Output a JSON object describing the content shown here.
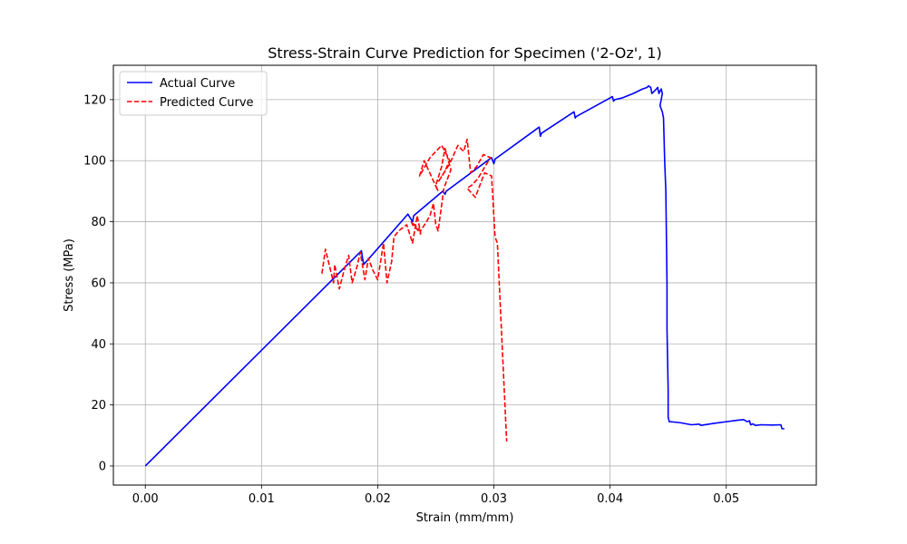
{
  "chart_data": {
    "type": "line",
    "title": "Stress-Strain Curve Prediction for Specimen ('2-Oz', 1)",
    "xlabel": "Strain (mm/mm)",
    "ylabel": "Stress (MPa)",
    "xlim": [
      -0.00275,
      0.05775
    ],
    "ylim": [
      -6.25,
      131.25
    ],
    "xticks": [
      0.0,
      0.01,
      0.02,
      0.03,
      0.04,
      0.05
    ],
    "xtick_labels": [
      "0.00",
      "0.01",
      "0.02",
      "0.03",
      "0.04",
      "0.05"
    ],
    "yticks": [
      0,
      20,
      40,
      60,
      80,
      100,
      120
    ],
    "ytick_labels": [
      "0",
      "20",
      "40",
      "60",
      "80",
      "100",
      "120"
    ],
    "grid": true,
    "legend_position": "top-left",
    "series": [
      {
        "name": "Actual Curve",
        "color": "#0000ff",
        "line_style": "solid",
        "x": [
          0.0,
          0.0186,
          0.0187,
          0.0188,
          0.0226,
          0.023,
          0.0231,
          0.0256,
          0.0258,
          0.0259,
          0.0298,
          0.03,
          0.0301,
          0.0339,
          0.034,
          0.0341,
          0.0369,
          0.037,
          0.0371,
          0.0395,
          0.0402,
          0.0403,
          0.0404,
          0.041,
          0.042,
          0.0428,
          0.0432,
          0.0433,
          0.0435,
          0.0436,
          0.044,
          0.0441,
          0.0442,
          0.0444,
          0.0445,
          0.0443,
          0.0445,
          0.0446,
          0.0447,
          0.0448,
          0.0449,
          0.0449,
          0.045,
          0.045,
          0.0451,
          0.0452,
          0.046,
          0.047,
          0.0477,
          0.0478,
          0.049,
          0.05,
          0.051,
          0.0515,
          0.0518,
          0.052,
          0.0521,
          0.0523,
          0.0525,
          0.053,
          0.054,
          0.0547,
          0.0548,
          0.055
        ],
        "y": [
          0,
          70.5,
          68,
          66,
          82.5,
          80,
          82,
          90,
          89,
          90,
          101,
          99,
          100.5,
          111,
          108,
          109,
          116,
          114,
          114.5,
          119.5,
          121,
          119.5,
          120,
          120.5,
          122,
          123.5,
          124,
          124.5,
          124,
          122,
          123.5,
          124,
          122,
          123.5,
          122,
          118,
          116,
          114,
          100,
          90,
          60,
          45,
          25,
          16,
          14.5,
          14.5,
          14.2,
          13.5,
          13.7,
          13.3,
          14,
          14.5,
          15,
          15.2,
          14.5,
          14.8,
          13.5,
          13.8,
          13.3,
          13.5,
          13.4,
          13.5,
          12.2,
          12.2
        ]
      },
      {
        "name": "Predicted Curve",
        "color": "#ff0000",
        "line_style": "dashed",
        "x": [
          0.0152,
          0.0155,
          0.0162,
          0.0163,
          0.0167,
          0.0171,
          0.0175,
          0.0178,
          0.0182,
          0.0185,
          0.0189,
          0.0192,
          0.0196,
          0.02,
          0.0205,
          0.0208,
          0.0212,
          0.0214,
          0.0218,
          0.0225,
          0.023,
          0.0234,
          0.0237,
          0.0233,
          0.023,
          0.0229,
          0.0237,
          0.0242,
          0.0245,
          0.0248,
          0.025,
          0.0252,
          0.0257,
          0.026,
          0.0263,
          0.0258,
          0.0255,
          0.025,
          0.0252,
          0.024,
          0.0236,
          0.0245,
          0.0255,
          0.0258,
          0.0262,
          0.0257,
          0.0252,
          0.0262,
          0.0269,
          0.0274,
          0.0277,
          0.028,
          0.0285,
          0.0291,
          0.0297,
          0.0286,
          0.0281,
          0.0277,
          0.0284,
          0.0292,
          0.0298,
          0.0301,
          0.0303,
          0.0311
        ],
        "y": [
          63,
          71,
          60,
          66,
          58,
          64,
          69,
          60,
          65,
          70,
          61,
          68,
          64,
          61,
          73,
          60,
          67,
          75,
          77,
          79,
          73,
          82,
          76,
          78,
          79,
          80,
          77,
          80,
          82,
          86,
          79,
          77,
          91,
          94,
          97,
          104,
          98,
          92,
          90,
          100,
          95,
          101,
          105,
          103,
          100,
          96,
          93,
          99,
          105,
          103,
          107,
          96,
          98,
          102,
          101,
          94,
          92,
          91,
          88,
          96,
          95,
          75,
          73,
          8
        ]
      }
    ]
  }
}
